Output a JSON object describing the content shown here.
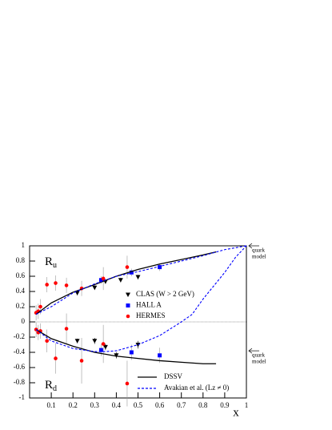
{
  "chart_data": {
    "type": "scatter",
    "xlim": [
      0,
      1
    ],
    "ylim": [
      -1,
      1
    ],
    "xticks": [
      0.1,
      0.2,
      0.3,
      0.4,
      0.5,
      0.6,
      0.7,
      0.8,
      0.9,
      1
    ],
    "yticks": [
      -1,
      -0.8,
      -0.6,
      -0.4,
      -0.2,
      0,
      0.2,
      0.4,
      0.6,
      0.8,
      1
    ],
    "xlabel": "x",
    "annotations": [
      {
        "text": "R",
        "sub": "u"
      },
      {
        "text": "R",
        "sub": "d"
      },
      {
        "lines": [
          "quark",
          "model"
        ],
        "y": 1
      },
      {
        "lines": [
          "quark",
          "model"
        ],
        "y": -0.38
      }
    ],
    "series": [
      {
        "name": "CLAS (W > 2 GeV)",
        "marker": "triangle",
        "color": "#000000",
        "x": [
          0.22,
          0.3,
          0.35,
          0.42,
          0.5,
          0.22,
          0.3,
          0.35,
          0.4,
          0.5
        ],
        "values": [
          0.38,
          0.45,
          0.53,
          0.55,
          0.59,
          -0.25,
          -0.25,
          -0.33,
          -0.44,
          -0.3
        ],
        "errors": [
          0.03,
          0.03,
          0.03,
          0.03,
          0.03,
          0.03,
          0.04,
          0.04,
          0.04,
          0.05
        ]
      },
      {
        "name": "HALL A",
        "marker": "square",
        "color": "#0000ff",
        "x": [
          0.33,
          0.47,
          0.6,
          0.33,
          0.47,
          0.6
        ],
        "values": [
          0.55,
          0.65,
          0.72,
          -0.37,
          -0.4,
          -0.44
        ],
        "errors": [
          0.05,
          0.05,
          0.05,
          0.08,
          0.1,
          0.1
        ]
      },
      {
        "name": "HERMES",
        "marker": "circle",
        "color": "#ff0000",
        "x": [
          0.03,
          0.04,
          0.05,
          0.08,
          0.12,
          0.17,
          0.24,
          0.34,
          0.45,
          0.03,
          0.04,
          0.05,
          0.08,
          0.12,
          0.17,
          0.24,
          0.34,
          0.45
        ],
        "values": [
          0.12,
          0.14,
          0.2,
          0.49,
          0.51,
          0.48,
          0.44,
          0.57,
          0.72,
          -0.1,
          -0.14,
          -0.12,
          -0.25,
          -0.48,
          -0.09,
          -0.51,
          -0.29,
          -0.81
        ],
        "errors": [
          0.1,
          0.1,
          0.1,
          0.1,
          0.1,
          0.1,
          0.1,
          0.15,
          0.15,
          0.1,
          0.1,
          0.1,
          0.15,
          0.2,
          0.2,
          0.3,
          0.25,
          0.3
        ]
      },
      {
        "name": "DSSV",
        "marker": "line",
        "color": "#000000",
        "curves": [
          {
            "x": [
              0.03,
              0.1,
              0.2,
              0.3,
              0.4,
              0.5,
              0.6,
              0.7,
              0.8,
              0.86
            ],
            "values": [
              0.1,
              0.25,
              0.39,
              0.49,
              0.6,
              0.69,
              0.76,
              0.82,
              0.88,
              0.92
            ]
          },
          {
            "x": [
              0.03,
              0.1,
              0.2,
              0.3,
              0.4,
              0.5,
              0.6,
              0.7,
              0.8,
              0.86
            ],
            "values": [
              -0.1,
              -0.22,
              -0.32,
              -0.4,
              -0.45,
              -0.48,
              -0.51,
              -0.53,
              -0.55,
              -0.55
            ]
          }
        ]
      },
      {
        "name": "Avakian et al. (Lz ≠ 0)",
        "marker": "dashed",
        "color": "#0000ff",
        "curves": [
          {
            "x": [
              0.03,
              0.1,
              0.2,
              0.3,
              0.4,
              0.5,
              0.6,
              0.7,
              0.8,
              0.9,
              1
            ],
            "values": [
              0.1,
              0.2,
              0.38,
              0.5,
              0.6,
              0.66,
              0.73,
              0.8,
              0.87,
              0.95,
              1
            ]
          },
          {
            "x": [
              0.03,
              0.1,
              0.2,
              0.3,
              0.35,
              0.4,
              0.5,
              0.6,
              0.7,
              0.75,
              0.8,
              0.9,
              0.95,
              1
            ],
            "values": [
              -0.1,
              -0.25,
              -0.35,
              -0.39,
              -0.39,
              -0.38,
              -0.3,
              -0.18,
              0,
              0.1,
              0.3,
              0.65,
              0.85,
              1
            ]
          }
        ]
      }
    ]
  }
}
